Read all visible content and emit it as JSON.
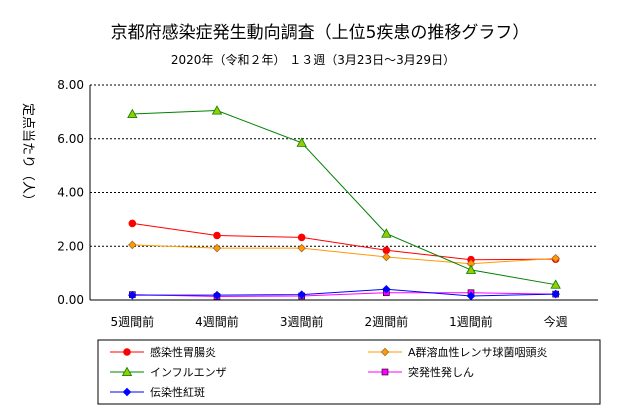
{
  "chart_data": {
    "type": "line",
    "title": "京都府感染症発生動向調査（上位5疾患の推移グラフ）",
    "subtitle": "2020年（令和２年） １３週（3月23日～3月29日）",
    "xlabel": "",
    "ylabel": "定点当たり（人）",
    "categories": [
      "5週間前",
      "4週間前",
      "3週間前",
      "2週間前",
      "1週間前",
      "今週"
    ],
    "ylim": [
      0,
      8
    ],
    "yticks": [
      "0.00",
      "2.00",
      "4.00",
      "6.00",
      "8.00"
    ],
    "grid": "horizontal-dashed",
    "legend_position": "bottom",
    "series": [
      {
        "name": "感染性胃腸炎",
        "color": "#ff0000",
        "marker": "circle",
        "values": [
          2.85,
          2.4,
          2.33,
          1.85,
          1.5,
          1.52
        ]
      },
      {
        "name": "A群溶血性レンサ球菌咽頭炎",
        "color": "#ff9900",
        "marker": "diamond",
        "values": [
          2.05,
          1.93,
          1.93,
          1.6,
          1.35,
          1.55
        ]
      },
      {
        "name": "インフルエンザ",
        "color": "#008000",
        "marker": "triangle",
        "values": [
          6.92,
          7.05,
          5.85,
          2.47,
          1.12,
          0.57
        ]
      },
      {
        "name": "突発性発しん",
        "color": "#ff00ff",
        "marker": "square",
        "values": [
          0.2,
          0.13,
          0.15,
          0.27,
          0.27,
          0.22
        ]
      },
      {
        "name": "伝染性紅斑",
        "color": "#0000ff",
        "marker": "diamond",
        "values": [
          0.18,
          0.18,
          0.2,
          0.4,
          0.15,
          0.22
        ]
      }
    ]
  }
}
